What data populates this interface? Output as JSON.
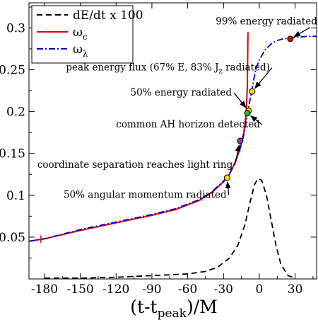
{
  "chart_data": {
    "type": "line",
    "xlabel": {
      "main": "(t-t",
      "sub": "peak",
      "tail": ")/M"
    },
    "x_ticks": [
      "-180",
      "-150",
      "-120",
      "-90",
      "-60",
      "-30",
      "0",
      "30"
    ],
    "y_ticks": [
      "0.05",
      "0.1",
      "0.15",
      "0.2",
      "0.25",
      "0.3"
    ],
    "xlim": [
      -193,
      48
    ],
    "ylim": [
      0.0,
      0.33
    ],
    "grid": false,
    "legend_position": "top-left",
    "legend": [
      {
        "label": "dE/dt x 100",
        "sub": "",
        "color": "#000000",
        "style": "dashed"
      },
      {
        "label": "ω",
        "sub": "c",
        "color": "#e00000",
        "style": "solid"
      },
      {
        "label": "ω",
        "sub": "λ",
        "color": "#0000cc",
        "style": "dash-dot"
      }
    ],
    "series": [
      {
        "name": "dE/dt x 100",
        "color": "#000000",
        "style": "dashed",
        "x": [
          -180,
          -150,
          -120,
          -90,
          -60,
          -45,
          -35,
          -25,
          -18,
          -12,
          -8,
          -4,
          -1,
          2,
          6,
          10,
          14,
          18,
          24,
          30
        ],
        "y": [
          0.001,
          0.001,
          0.002,
          0.004,
          0.006,
          0.009,
          0.014,
          0.025,
          0.04,
          0.065,
          0.09,
          0.113,
          0.12,
          0.118,
          0.1,
          0.07,
          0.04,
          0.018,
          0.004,
          0.001
        ]
      },
      {
        "name": "ω",
        "color": "#e00000",
        "style": "solid",
        "x": [
          -193,
          -180,
          -150,
          -120,
          -90,
          -70,
          -50,
          -40,
          -30,
          -25,
          -20,
          -17,
          -15,
          -13,
          -11,
          -10,
          -9.5
        ],
        "y": [
          0.045,
          0.048,
          0.058,
          0.067,
          0.076,
          0.083,
          0.094,
          0.103,
          0.116,
          0.125,
          0.14,
          0.152,
          0.162,
          0.175,
          0.198,
          0.23,
          0.295
        ]
      },
      {
        "name": "ω",
        "color": "#0000cc",
        "style": "dash-dot",
        "x": [
          -193,
          -180,
          -150,
          -120,
          -90,
          -70,
          -50,
          -40,
          -30,
          -25,
          -20,
          -16,
          -13,
          -11,
          -9,
          -7,
          -5,
          -3,
          0,
          5,
          10,
          15,
          20,
          26,
          33,
          40,
          48
        ],
        "y": [
          0.045,
          0.048,
          0.059,
          0.068,
          0.077,
          0.084,
          0.095,
          0.104,
          0.117,
          0.126,
          0.141,
          0.156,
          0.172,
          0.188,
          0.204,
          0.22,
          0.236,
          0.25,
          0.262,
          0.274,
          0.281,
          0.285,
          0.287,
          0.288,
          0.289,
          0.29,
          0.29
        ]
      }
    ],
    "points": [
      {
        "label": "99% energy radiated",
        "x": 26,
        "y": 0.287,
        "color": "#e00000",
        "lx": 6,
        "ly": 0.304,
        "anchor": "middle"
      },
      {
        "label": "peak energy flux (67% E, 83% J",
        "label_sub": "z",
        "label_tail": " radiated)",
        "x": -6,
        "y": 0.224,
        "color": "#ffd700",
        "lx": -162,
        "ly": 0.249,
        "anchor": "start"
      },
      {
        "label": "50% energy radiated",
        "x": -9,
        "y": 0.201,
        "color": "#ffd700",
        "lx": -108,
        "ly": 0.219,
        "anchor": "start"
      },
      {
        "label": "common AH horizon detected",
        "x": -10,
        "y": 0.198,
        "color": "#22bb22",
        "lx": -120,
        "ly": 0.181,
        "anchor": "start"
      },
      {
        "label": "coordinate separation reaches light ring",
        "x": -16,
        "y": 0.165,
        "color": "#9933cc",
        "lx": -186,
        "ly": 0.133,
        "anchor": "start"
      },
      {
        "label": "50% angular momentum radiated",
        "x": -27,
        "y": 0.121,
        "color": "#ffd700",
        "lx": -164,
        "ly": 0.097,
        "anchor": "start"
      }
    ]
  }
}
